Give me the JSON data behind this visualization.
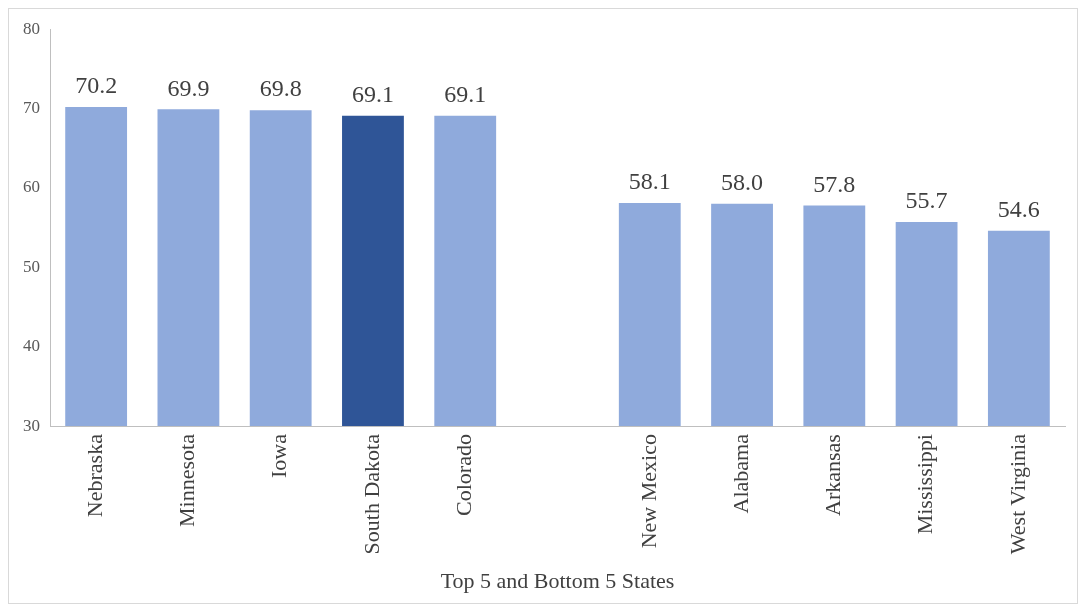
{
  "chart_data": {
    "type": "bar",
    "xlabel": "Top 5 and Bottom 5 States",
    "categories": [
      "Nebraska",
      "Minnesota",
      "Iowa",
      "South Dakota",
      "Colorado",
      null,
      "New Mexico",
      "Alabama",
      "Arkansas",
      "Mississippi",
      "West Virginia"
    ],
    "values": [
      70.2,
      69.9,
      69.8,
      69.1,
      69.1,
      null,
      58.1,
      58.0,
      57.8,
      55.7,
      54.6
    ],
    "value_labels": [
      "70.2",
      "69.9",
      "69.8",
      "69.1",
      "69.1",
      null,
      "58.1",
      "58.0",
      "57.8",
      "55.7",
      "54.6"
    ],
    "colors": [
      "#8faadc",
      "#8faadc",
      "#8faadc",
      "#2f5597",
      "#8faadc",
      "#8faadc",
      "#8faadc",
      "#8faadc",
      "#8faadc",
      "#8faadc",
      "#8faadc"
    ],
    "ylim": [
      30,
      80
    ],
    "yticks": [
      30,
      40,
      50,
      60,
      70,
      80
    ],
    "grid": false,
    "legend": false
  }
}
